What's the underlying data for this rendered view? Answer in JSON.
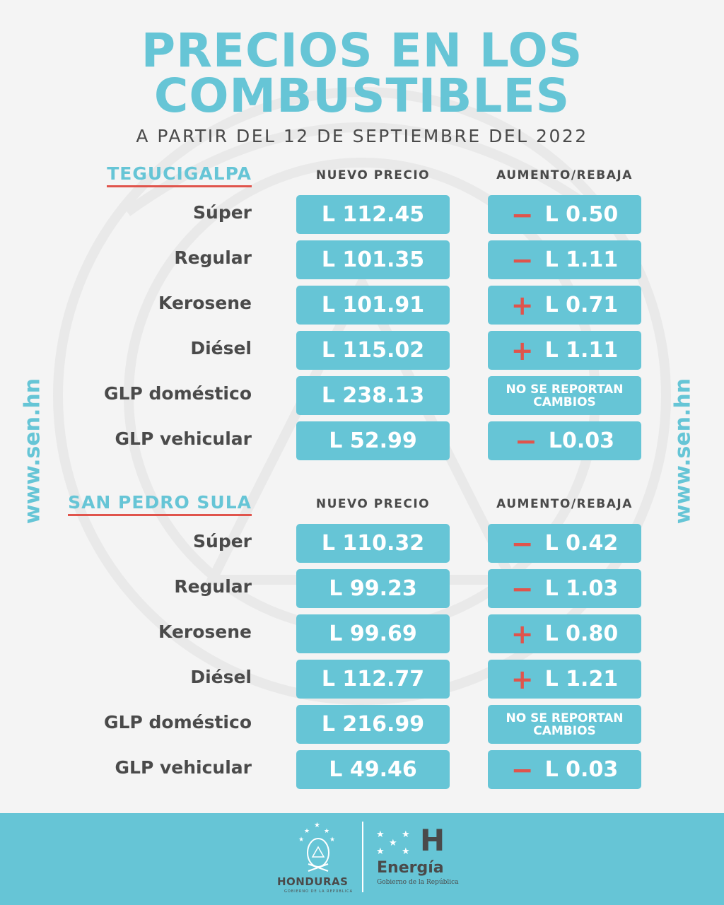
{
  "title": {
    "line1": "PRECIOS EN LOS",
    "line2": "COMBUSTIBLES",
    "subtitle": "A PARTIR DEL 12 DE SEPTIEMBRE DEL 2022"
  },
  "side_text": "www.sen.hn",
  "colors": {
    "accent": "#66c5d6",
    "sign": "#e0544c",
    "text": "#4a4a4a"
  },
  "sections": [
    {
      "city": "TEGUCIGALPA",
      "col_price": "NUEVO PRECIO",
      "col_change": "AUMENTO/REBAJA",
      "rows": [
        {
          "fuel": "Súper",
          "price": "L 112.45",
          "sign": "−",
          "change": "L 0.50"
        },
        {
          "fuel": "Regular",
          "price": "L 101.35",
          "sign": "−",
          "change": "L 1.11"
        },
        {
          "fuel": "Kerosene",
          "price": "L 101.91",
          "sign": "+",
          "change": "L 0.71"
        },
        {
          "fuel": "Diésel",
          "price": "L 115.02",
          "sign": "+",
          "change": "L 1.11"
        },
        {
          "fuel": "GLP doméstico",
          "price": "L 238.13",
          "sign": "",
          "change": "NO SE REPORTAN CAMBIOS"
        },
        {
          "fuel": "GLP vehicular",
          "price": "L 52.99",
          "sign": "−",
          "change": "L0.03"
        }
      ]
    },
    {
      "city": "SAN PEDRO SULA",
      "col_price": "NUEVO PRECIO",
      "col_change": "AUMENTO/REBAJA",
      "rows": [
        {
          "fuel": "Súper",
          "price": "L 110.32",
          "sign": "−",
          "change": "L 0.42"
        },
        {
          "fuel": "Regular",
          "price": "L 99.23",
          "sign": "−",
          "change": "L 1.03"
        },
        {
          "fuel": "Kerosene",
          "price": "L 99.69",
          "sign": "+",
          "change": "L 0.80"
        },
        {
          "fuel": "Diésel",
          "price": "L 112.77",
          "sign": "+",
          "change": "L 1.21"
        },
        {
          "fuel": "GLP doméstico",
          "price": "L 216.99",
          "sign": "",
          "change": "NO SE REPORTAN CAMBIOS"
        },
        {
          "fuel": "GLP vehicular",
          "price": "L 49.46",
          "sign": "−",
          "change": "L 0.03"
        }
      ]
    }
  ],
  "footer": {
    "honduras": "HONDURAS",
    "honduras_sub": "GOBIERNO DE LA REPÚBLICA",
    "energia": "Energía",
    "energia_sub": "Gobierno de la República",
    "h_mark": "H"
  }
}
